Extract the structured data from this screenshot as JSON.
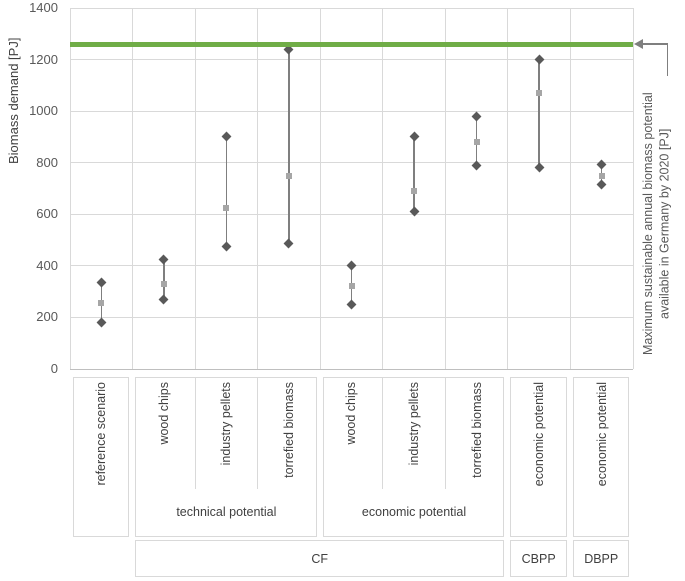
{
  "figure": {
    "background": "#ffffff"
  },
  "y_axis": {
    "title": "Biomass demand [PJ]",
    "ticks": [
      0,
      200,
      400,
      600,
      800,
      1000,
      1200,
      1400
    ]
  },
  "reference_line": {
    "value": 1260,
    "color": "#70ad47",
    "annotation_line1": "Maximum sustainable annual biomass potential",
    "annotation_line2": "available in Germany by 2020 [PJ]"
  },
  "colors": {
    "high_low_marker": "#595959",
    "mid_marker": "#a6a6a6",
    "connector": "#7f7f7f",
    "gridline": "#d9d9d9",
    "box_border": "#d9d9d9",
    "text": "#404040",
    "tick_text": "#595959",
    "reference_green": "#70ad47"
  },
  "chart_data": {
    "type": "scatter",
    "title": "",
    "xlabel": "",
    "ylabel": "Biomass demand [PJ]",
    "ylim": [
      0,
      1400
    ],
    "yticks": [
      0,
      200,
      400,
      600,
      800,
      1000,
      1200,
      1400
    ],
    "grid": true,
    "legend": "none",
    "marker_semantics": "diamonds = high/low of range, small square = intermediate value",
    "reference_line_value": 1260,
    "columns": [
      {
        "label": "reference scenario",
        "high": 335,
        "mid": 255,
        "low": 180
      },
      {
        "label": "wood chips",
        "high": 425,
        "mid": 330,
        "low": 270
      },
      {
        "label": "industry pellets",
        "high": 900,
        "mid": 625,
        "low": 475
      },
      {
        "label": "torrefied biomass",
        "high": 1240,
        "mid": 750,
        "low": 485
      },
      {
        "label": "wood chips",
        "high": 400,
        "mid": 320,
        "low": 250
      },
      {
        "label": "industry pellets",
        "high": 900,
        "mid": 690,
        "low": 610
      },
      {
        "label": "torrefied biomass",
        "high": 980,
        "mid": 880,
        "low": 790
      },
      {
        "label": "economic potential",
        "high": 1200,
        "mid": 1070,
        "low": 780
      },
      {
        "label": "economic potential",
        "high": 795,
        "mid": 750,
        "low": 715
      }
    ],
    "solo_cells": [
      0,
      7,
      8
    ],
    "groups": [
      {
        "label": "technical potential",
        "start": 1,
        "span": 3
      },
      {
        "label": "economic potential",
        "start": 4,
        "span": 3
      }
    ],
    "bottom_tier": [
      {
        "label": "CF",
        "start": 1,
        "span": 6
      },
      {
        "label": "CBPP",
        "start": 7,
        "span": 1
      },
      {
        "label": "DBPP",
        "start": 8,
        "span": 1
      }
    ]
  }
}
